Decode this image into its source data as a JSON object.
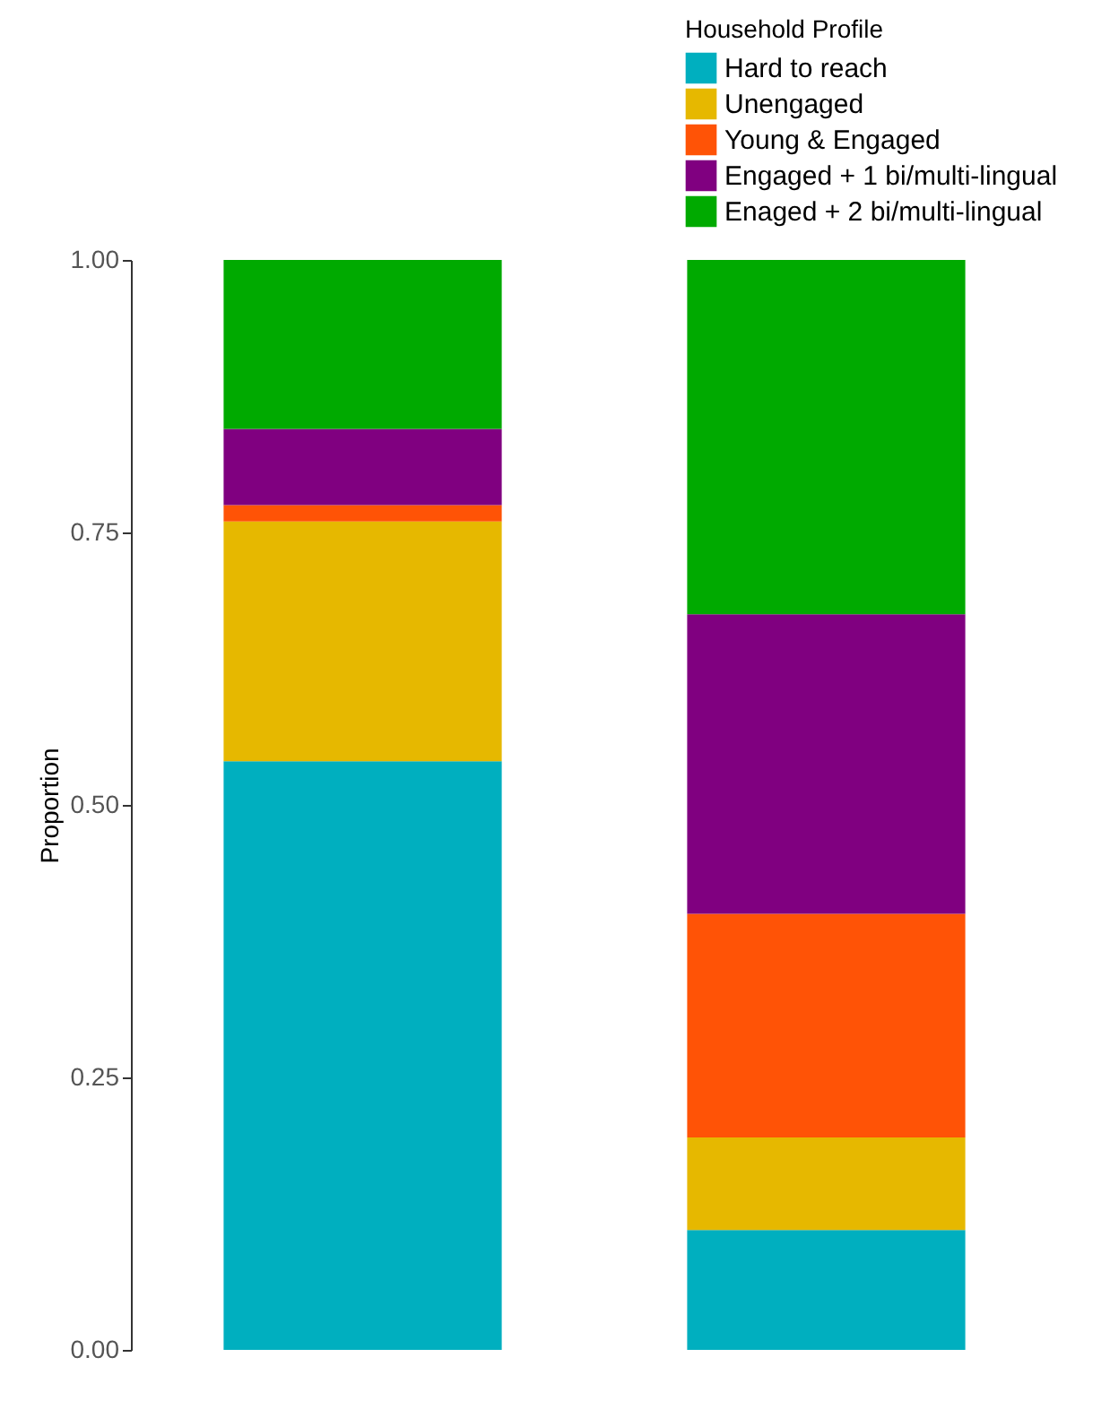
{
  "chart_data": {
    "type": "bar",
    "stacked": true,
    "categories": [
      null,
      null
    ],
    "ylabel": "Proportion",
    "legend_title": "Household Profile",
    "legend": "top right",
    "grid": false,
    "ylim": [
      0,
      1
    ],
    "yticks": [
      {
        "value": 0,
        "label": "0.00"
      },
      {
        "value": 0.25,
        "label": "0.25"
      },
      {
        "value": 0.5,
        "label": "0.50"
      },
      {
        "value": 0.75,
        "label": "0.75"
      },
      {
        "value": 1,
        "label": "1.00"
      }
    ],
    "series": [
      {
        "name": "Hard to reach",
        "color": "#00afbf",
        "values": [
          0.54,
          0.11
        ]
      },
      {
        "name": "Unengaged",
        "color": "#e6b800",
        "values": [
          0.22,
          0.085
        ]
      },
      {
        "name": "Young & Engaged",
        "color": "#ff5306",
        "values": [
          0.015,
          0.205
        ]
      },
      {
        "name": "Engaged + 1 bi/multi-lingual",
        "color": "#800080",
        "values": [
          0.07,
          0.275
        ]
      },
      {
        "name": "Enaged + 2 bi/multi-lingual",
        "color": "#00aa00",
        "values": [
          0.155,
          0.325
        ]
      }
    ]
  }
}
